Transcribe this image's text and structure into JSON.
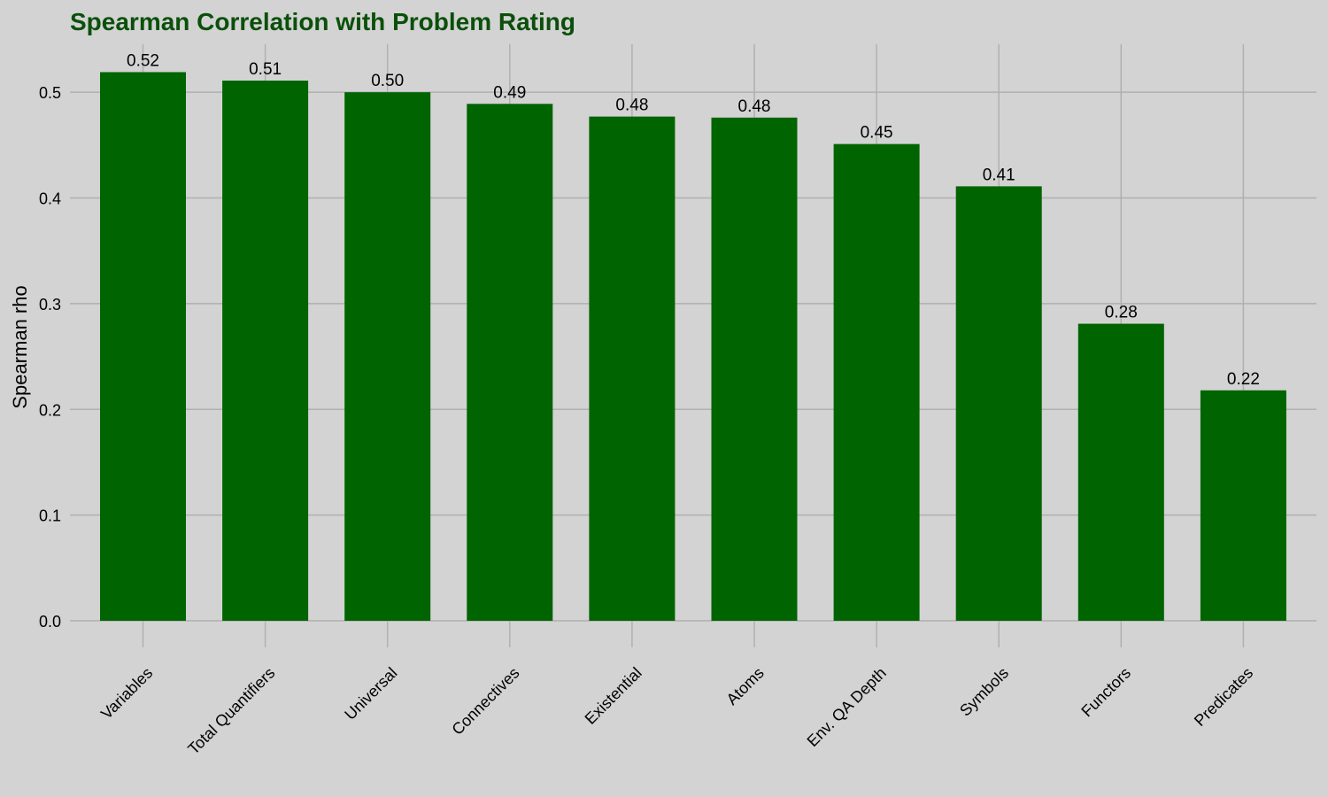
{
  "chart_data": {
    "type": "bar",
    "title": "Spearman Correlation with Problem Rating",
    "xlabel": "",
    "ylabel": "Spearman rho",
    "categories": [
      "Variables",
      "Total Quantifiers",
      "Universal",
      "Connectives",
      "Existential",
      "Atoms",
      "Env. QA Depth",
      "Symbols",
      "Functors",
      "Predicates"
    ],
    "values": [
      0.519,
      0.511,
      0.5,
      0.489,
      0.477,
      0.476,
      0.451,
      0.411,
      0.281,
      0.218
    ],
    "data_labels": [
      "0.52",
      "0.51",
      "0.50",
      "0.49",
      "0.48",
      "0.48",
      "0.45",
      "0.41",
      "0.28",
      "0.22"
    ],
    "yticks": [
      "0.0",
      "0.1",
      "0.2",
      "0.3",
      "0.4",
      "0.5"
    ],
    "ylim": [
      0,
      0.545
    ],
    "grid": true,
    "legend": "none",
    "colors": {
      "bar": "#006400",
      "title": "#0b4f0b",
      "background": "#d3d3d3",
      "grid": "#b0b0b0"
    }
  }
}
